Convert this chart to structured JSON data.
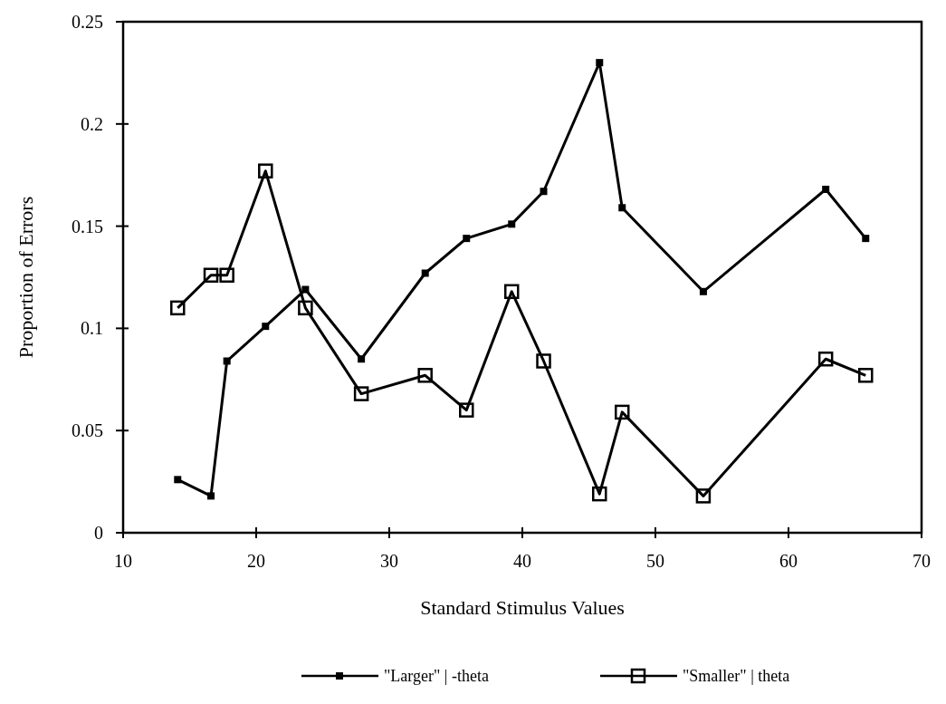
{
  "chart_data": {
    "type": "line",
    "xlabel": "Standard Stimulus Values",
    "ylabel": "Proportion of Errors",
    "x": [
      14.1,
      16.6,
      17.8,
      20.7,
      23.7,
      27.9,
      32.7,
      35.8,
      39.2,
      41.6,
      45.8,
      47.5,
      53.6,
      62.8,
      65.8
    ],
    "series": [
      {
        "name": "\"Larger\" | -theta",
        "color": "#000000",
        "marker": "square",
        "values": [
          0.026,
          0.018,
          0.084,
          0.101,
          0.119,
          0.085,
          0.127,
          0.144,
          0.151,
          0.167,
          0.23,
          0.159,
          0.118,
          0.168,
          0.144
        ]
      },
      {
        "name": "\"Smaller\" | theta",
        "color": "#000000",
        "marker": "square-open",
        "values": [
          0.11,
          0.126,
          0.126,
          0.177,
          0.11,
          0.068,
          0.077,
          0.06,
          0.118,
          0.084,
          0.019,
          0.059,
          0.018,
          0.085,
          0.077
        ]
      }
    ],
    "xlim": [
      10,
      70
    ],
    "xticks": [
      10,
      20,
      30,
      40,
      50,
      60,
      70
    ],
    "ylim": [
      0,
      0.25
    ],
    "yticks": [
      0,
      0.05,
      0.1,
      0.15,
      0.2,
      0.25
    ],
    "grid": false,
    "legend": "bottom",
    "line_style": "solid"
  }
}
